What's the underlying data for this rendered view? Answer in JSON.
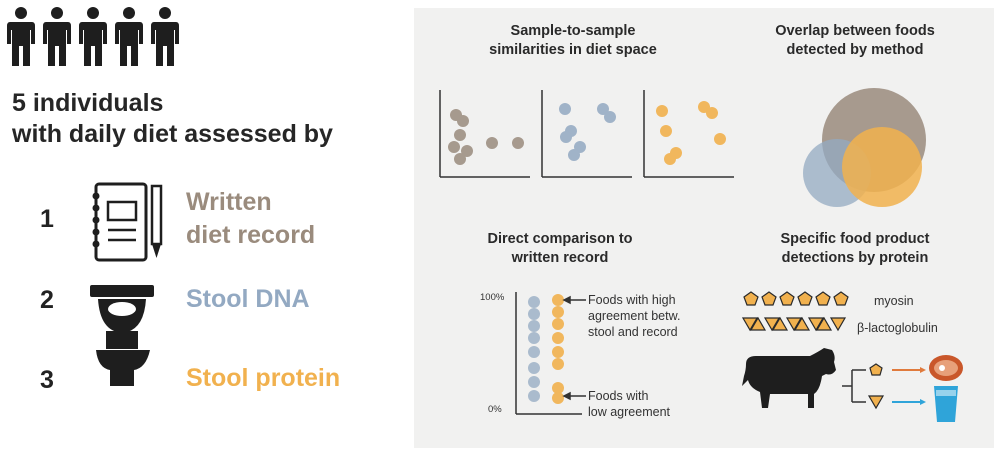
{
  "colors": {
    "written": "#9a8b7d",
    "dna": "#93a9c2",
    "protein": "#f1b14e",
    "dark": "#1e1e1e",
    "panel_bg": "#f1f1f0"
  },
  "left": {
    "people_icon": "person-icon",
    "people_count": 5,
    "headline_line1": "5 individuals",
    "headline_line2": "with daily diet assessed by",
    "methods": [
      {
        "number": "1",
        "label_line1": "Written",
        "label_line2": "diet record",
        "icon": "notebook-pen-icon"
      },
      {
        "number": "2",
        "label_line1": "Stool DNA",
        "icon": "toilet-icon"
      },
      {
        "number": "3",
        "label_line1": "Stool protein",
        "icon": "toilet-icon"
      }
    ]
  },
  "panels": {
    "similarity": {
      "title_line1": "Sample-to-sample",
      "title_line2": "similarities in diet space"
    },
    "overlap": {
      "title_line1": "Overlap between foods",
      "title_line2": "detected by method"
    },
    "comparison": {
      "title_line1": "Direct comparison to",
      "title_line2": "written record",
      "y_top": "100%",
      "y_bottom": "0%",
      "high_line1": "Foods with high",
      "high_line2": "agreement betw.",
      "high_line3": "stool and record",
      "low_line1": "Foods with",
      "low_line2": "low agreement"
    },
    "specific": {
      "title_line1": "Specific food product",
      "title_line2": "detections by protein",
      "myosin": "myosin",
      "lacto": "β-lactoglobulin",
      "icons": [
        "pentagon-icon",
        "triangle-icon",
        "cow-icon",
        "steak-icon",
        "milk-glass-icon"
      ]
    }
  }
}
